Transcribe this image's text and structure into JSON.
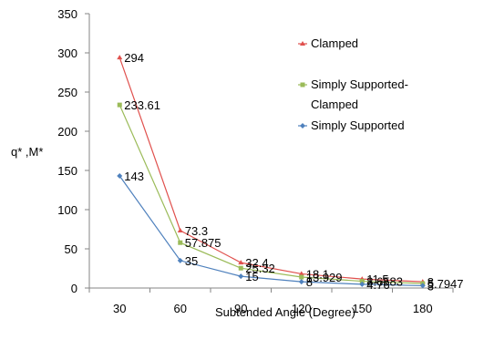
{
  "chart_data": {
    "type": "line",
    "title": "",
    "xlabel": "Subtended Angle (Degree)",
    "ylabel": "q* ,M*",
    "x": [
      30,
      60,
      90,
      120,
      150,
      180
    ],
    "xtick_labels": [
      "30",
      "60",
      "90",
      "120",
      "150",
      "180"
    ],
    "ylim": [
      0,
      350
    ],
    "yticks": [
      0,
      50,
      100,
      150,
      200,
      250,
      300,
      350
    ],
    "grid": false,
    "legend_position": "right",
    "series": [
      {
        "name": "Clamped",
        "color": "#E0504D",
        "marker": "triangle",
        "values": [
          294,
          73.3,
          32.4,
          18.1,
          11.5,
          8
        ],
        "labels": [
          "294",
          "73.3",
          "32.4",
          "18.1",
          "11.5",
          "8"
        ]
      },
      {
        "name": "Simply Supported-Clamped",
        "legend_lines": [
          "Simply Supported-",
          "Clamped"
        ],
        "color": "#9BBB59",
        "marker": "square",
        "values": [
          233.61,
          57.875,
          25.32,
          13.929,
          8.6583,
          5.7947
        ],
        "labels": [
          "233.61",
          "57.875",
          "25.32",
          "13.929",
          "8.6583",
          "5.7947"
        ]
      },
      {
        "name": "Simply Supported",
        "color": "#4F81BD",
        "marker": "diamond",
        "values": [
          143,
          35,
          15,
          8,
          4.76,
          3
        ],
        "labels": [
          "143",
          "35",
          "15",
          "8",
          "4.76",
          "3"
        ]
      }
    ]
  }
}
